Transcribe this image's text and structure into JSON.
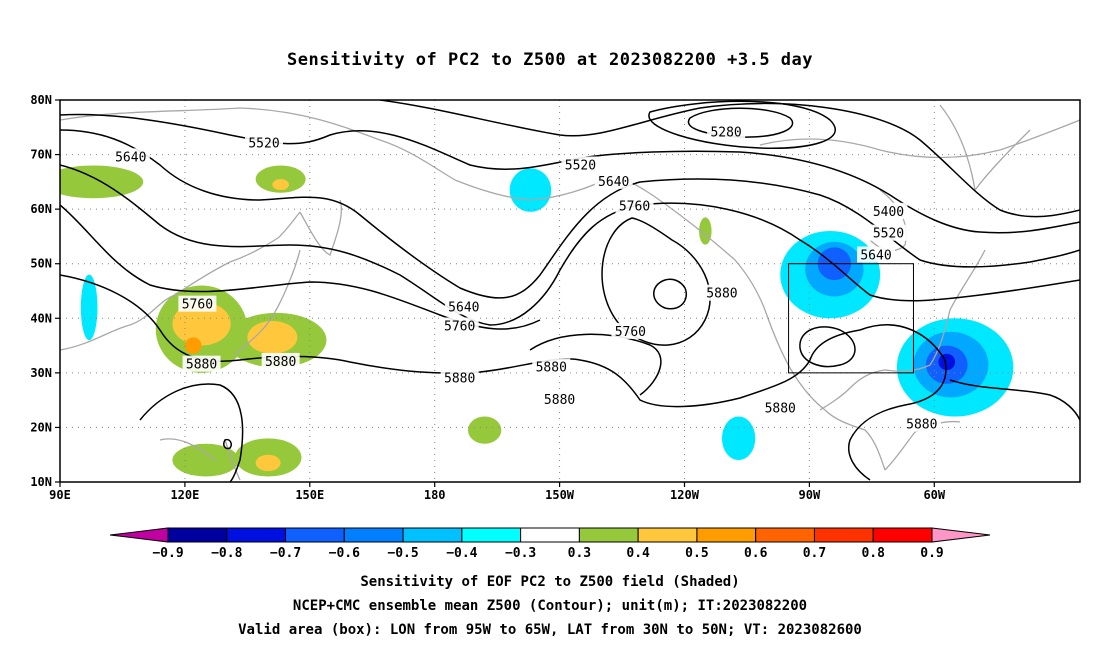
{
  "title": "Sensitivity of PC2 to Z500 at 2023082200 +3.5 day",
  "map": {
    "lon_range": [
      90,
      335
    ],
    "lat_range": [
      10,
      80
    ],
    "lon_ticks": [
      {
        "lon": 90,
        "label": "90E"
      },
      {
        "lon": 120,
        "label": "120E"
      },
      {
        "lon": 150,
        "label": "150E"
      },
      {
        "lon": 180,
        "label": "180"
      },
      {
        "lon": 210,
        "label": "150W"
      },
      {
        "lon": 240,
        "label": "120W"
      },
      {
        "lon": 270,
        "label": "90W"
      },
      {
        "lon": 300,
        "label": "60W"
      }
    ],
    "lat_ticks": [
      {
        "lat": 10,
        "label": "10N"
      },
      {
        "lat": 20,
        "label": "20N"
      },
      {
        "lat": 30,
        "label": "30N"
      },
      {
        "lat": 40,
        "label": "40N"
      },
      {
        "lat": 50,
        "label": "50N"
      },
      {
        "lat": 60,
        "label": "60N"
      },
      {
        "lat": 70,
        "label": "70N"
      },
      {
        "lat": 80,
        "label": "80N"
      }
    ],
    "gridlines": true,
    "valid_box": {
      "lon_min": 265,
      "lon_max": 295,
      "lat_min": 30,
      "lat_max": 50
    },
    "contour_labels": [
      {
        "text": "5640",
        "lon": 107,
        "lat": 69.5
      },
      {
        "text": "5520",
        "lon": 139,
        "lat": 72
      },
      {
        "text": "5520",
        "lon": 215,
        "lat": 68
      },
      {
        "text": "5280",
        "lon": 250,
        "lat": 74
      },
      {
        "text": "5640",
        "lon": 223,
        "lat": 65
      },
      {
        "text": "5760",
        "lon": 228,
        "lat": 60.5
      },
      {
        "text": "5400",
        "lon": 289,
        "lat": 59.5
      },
      {
        "text": "5520",
        "lon": 289,
        "lat": 55.5
      },
      {
        "text": "5640",
        "lon": 286,
        "lat": 51.5
      },
      {
        "text": "5880",
        "lon": 249,
        "lat": 44.5
      },
      {
        "text": "5760",
        "lon": 123,
        "lat": 42.5
      },
      {
        "text": "5640",
        "lon": 187,
        "lat": 42
      },
      {
        "text": "5760",
        "lon": 186,
        "lat": 38.5
      },
      {
        "text": "5760",
        "lon": 227,
        "lat": 37.5
      },
      {
        "text": "5880",
        "lon": 124,
        "lat": 31.5
      },
      {
        "text": "5880",
        "lon": 143,
        "lat": 32
      },
      {
        "text": "5880",
        "lon": 186,
        "lat": 29
      },
      {
        "text": "5880",
        "lon": 208,
        "lat": 31
      },
      {
        "text": "5880",
        "lon": 210,
        "lat": 25
      },
      {
        "text": "5880",
        "lon": 263,
        "lat": 23.5
      },
      {
        "text": "5880",
        "lon": 297,
        "lat": 20.5
      }
    ],
    "shaded_regions": [
      {
        "level": "0.3",
        "lon": 98,
        "lat": 65,
        "rlon": 12,
        "rlat": 3
      },
      {
        "level": "0.3",
        "lon": 143,
        "lat": 65.5,
        "rlon": 6,
        "rlat": 2.5
      },
      {
        "level": "0.4",
        "lon": 143,
        "lat": 64.5,
        "rlon": 2,
        "rlat": 1
      },
      {
        "level": "0.3",
        "lon": 124,
        "lat": 38,
        "rlon": 11,
        "rlat": 8
      },
      {
        "level": "0.3",
        "lon": 142,
        "lat": 36,
        "rlon": 12,
        "rlat": 5
      },
      {
        "level": "0.4",
        "lon": 124,
        "lat": 39,
        "rlon": 7,
        "rlat": 4
      },
      {
        "level": "0.4",
        "lon": 141,
        "lat": 36.5,
        "rlon": 6,
        "rlat": 3
      },
      {
        "level": "0.5",
        "lon": 122,
        "lat": 35,
        "rlon": 2,
        "rlat": 1.5
      },
      {
        "level": "0.3",
        "lon": 125,
        "lat": 14,
        "rlon": 8,
        "rlat": 3
      },
      {
        "level": "0.3",
        "lon": 140,
        "lat": 14.5,
        "rlon": 8,
        "rlat": 3.5
      },
      {
        "level": "0.4",
        "lon": 140,
        "lat": 13.5,
        "rlon": 3,
        "rlat": 1.5
      },
      {
        "level": "0.3",
        "lon": 192,
        "lat": 19.5,
        "rlon": 4,
        "rlat": 2.5
      },
      {
        "level": "0.3",
        "lon": 245,
        "lat": 56,
        "rlon": 1.5,
        "rlat": 2.5
      },
      {
        "level": "-0.4",
        "lon": 203,
        "lat": 63.5,
        "rlon": 5,
        "rlat": 4
      },
      {
        "level": "-0.4",
        "lon": 97,
        "lat": 42,
        "rlon": 2,
        "rlat": 6
      },
      {
        "level": "-0.4",
        "lon": 275,
        "lat": 48,
        "rlon": 12,
        "rlat": 8
      },
      {
        "level": "-0.5",
        "lon": 276,
        "lat": 49,
        "rlon": 7,
        "rlat": 5
      },
      {
        "level": "-0.6",
        "lon": 276,
        "lat": 50,
        "rlon": 4,
        "rlat": 3
      },
      {
        "level": "-0.4",
        "lon": 305,
        "lat": 31,
        "rlon": 14,
        "rlat": 9
      },
      {
        "level": "-0.5",
        "lon": 304,
        "lat": 31.5,
        "rlon": 9,
        "rlat": 6
      },
      {
        "level": "-0.6",
        "lon": 303,
        "lat": 31.5,
        "rlon": 5,
        "rlat": 3.5
      },
      {
        "level": "-0.7",
        "lon": 303,
        "lat": 32,
        "rlon": 2,
        "rlat": 1.5
      },
      {
        "level": "-0.4",
        "lon": 253,
        "lat": 18,
        "rlon": 4,
        "rlat": 4
      }
    ],
    "colors": {
      "-0.9": "#c000a0",
      "-0.8": "#0000a0",
      "-0.7": "#0010e0",
      "-0.6": "#1060ff",
      "-0.5": "#00a8ff",
      "-0.4": "#00e8ff",
      "0.3": "#96c83c",
      "0.4": "#ffc83c",
      "0.5": "#ff9c00",
      "0.6": "#ff6400",
      "0.7": "#ff3200",
      "0.8": "#ff0000",
      "0.9": "#ff96c8"
    }
  },
  "colorbar": {
    "colors": [
      "#c000a0",
      "#0000a0",
      "#0010e0",
      "#1060ff",
      "#0080ff",
      "#00c0ff",
      "#00ffff",
      "#ffffff",
      "#96c83c",
      "#ffc83c",
      "#ff9c00",
      "#ff6400",
      "#ff3200",
      "#ff0000",
      "#ff96c8"
    ],
    "labels": [
      "−0.9",
      "−0.8",
      "−0.7",
      "−0.6",
      "−0.5",
      "−0.4",
      "−0.3",
      "0.3",
      "0.4",
      "0.5",
      "0.6",
      "0.7",
      "0.8",
      "0.9"
    ]
  },
  "captions": {
    "line1": "Sensitivity of EOF PC2 to Z500 field (Shaded)",
    "line2": "NCEP+CMC ensemble mean Z500 (Contour); unit(m); IT:2023082200",
    "line3": "Valid area (box): LON from 95W to 65W, LAT from 30N to 50N; VT: 2023082600"
  }
}
